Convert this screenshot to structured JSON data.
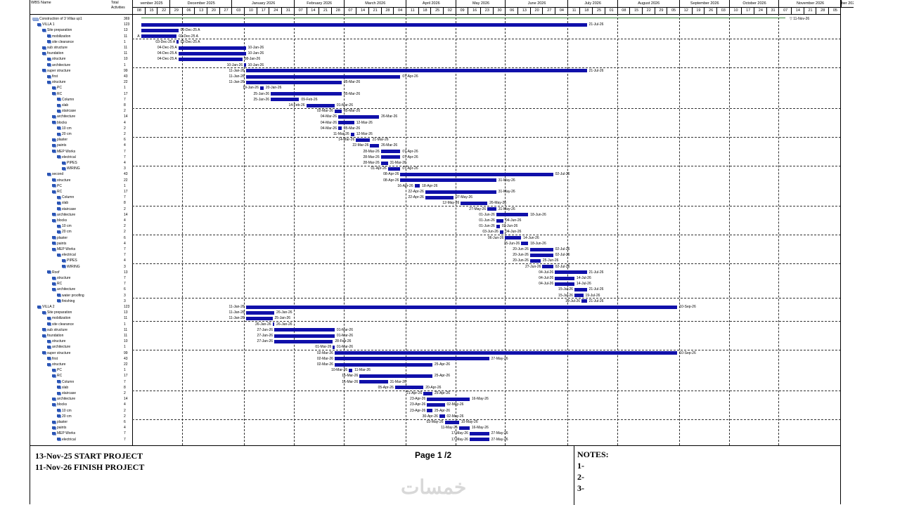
{
  "header": {
    "wbs_name": "WBS Name",
    "total_activities": "Total Activities",
    "months": [
      {
        "label": "vember 2025",
        "w": 3
      },
      {
        "label": "December 2025",
        "w": 5
      },
      {
        "label": "January 2026",
        "w": 5
      },
      {
        "label": "February 2026",
        "w": 4
      },
      {
        "label": "March 2026",
        "w": 5
      },
      {
        "label": "April 2026",
        "w": 4
      },
      {
        "label": "May 2026",
        "w": 4
      },
      {
        "label": "June 2026",
        "w": 5
      },
      {
        "label": "July 2026",
        "w": 4
      },
      {
        "label": "August 2026",
        "w": 5
      },
      {
        "label": "September 2026",
        "w": 4
      },
      {
        "label": "October 2026",
        "w": 4
      },
      {
        "label": "November 2026",
        "w": 5
      },
      {
        "label": "ber 2026",
        "w": 1
      }
    ],
    "weeks": [
      "08",
      "15",
      "22",
      "29",
      "06",
      "13",
      "20",
      "27",
      "03",
      "10",
      "17",
      "24",
      "31",
      "07",
      "14",
      "21",
      "28",
      "07",
      "14",
      "21",
      "28",
      "04",
      "11",
      "18",
      "25",
      "02",
      "09",
      "16",
      "23",
      "30",
      "06",
      "13",
      "20",
      "27",
      "04",
      "11",
      "18",
      "25",
      "01",
      "08",
      "15",
      "22",
      "29",
      "05",
      "12",
      "19",
      "26",
      "03",
      "10",
      "17",
      "24",
      "31",
      "07",
      "14",
      "21",
      "28",
      "05"
    ]
  },
  "tasks": [
    {
      "name": "Construction of 3 Villas up1",
      "d": "369",
      "lvl": 0
    },
    {
      "name": "VILLA 1",
      "d": "123",
      "lvl": 1
    },
    {
      "name": "Site preparation",
      "d": "13",
      "lvl": 2
    },
    {
      "name": "mobilization",
      "d": "11",
      "lvl": 3
    },
    {
      "name": "site clearance",
      "d": "1",
      "lvl": 3
    },
    {
      "name": "sub structure",
      "d": "11",
      "lvl": 2
    },
    {
      "name": "foundation",
      "d": "11",
      "lvl": 2
    },
    {
      "name": "structure",
      "d": "10",
      "lvl": 3
    },
    {
      "name": "architecture",
      "d": "1",
      "lvl": 3
    },
    {
      "name": "super structure",
      "d": "99",
      "lvl": 2
    },
    {
      "name": "first",
      "d": "43",
      "lvl": 3
    },
    {
      "name": "structure",
      "d": "22",
      "lvl": 3
    },
    {
      "name": "PC",
      "d": "1",
      "lvl": 4
    },
    {
      "name": "RC",
      "d": "17",
      "lvl": 4
    },
    {
      "name": "Column",
      "d": "7",
      "lvl": 5
    },
    {
      "name": "slab",
      "d": "8",
      "lvl": 5
    },
    {
      "name": "staircase",
      "d": "2",
      "lvl": 5
    },
    {
      "name": "architecture",
      "d": "14",
      "lvl": 4
    },
    {
      "name": "blocks",
      "d": "4",
      "lvl": 4
    },
    {
      "name": "10 cm",
      "d": "2",
      "lvl": 5
    },
    {
      "name": "20 cm",
      "d": "2",
      "lvl": 5
    },
    {
      "name": "plaster",
      "d": "6",
      "lvl": 4
    },
    {
      "name": "paints",
      "d": "4",
      "lvl": 4
    },
    {
      "name": "MEP Works",
      "d": "7",
      "lvl": 4
    },
    {
      "name": "electrical",
      "d": "7",
      "lvl": 5
    },
    {
      "name": "PIPES",
      "d": "4",
      "lvl": 6
    },
    {
      "name": "WIRING",
      "d": "3",
      "lvl": 6
    },
    {
      "name": "second",
      "d": "43",
      "lvl": 3
    },
    {
      "name": "structure",
      "d": "22",
      "lvl": 4
    },
    {
      "name": "PC",
      "d": "1",
      "lvl": 4
    },
    {
      "name": "RC",
      "d": "17",
      "lvl": 4
    },
    {
      "name": "Column",
      "d": "7",
      "lvl": 5
    },
    {
      "name": "slab",
      "d": "8",
      "lvl": 5
    },
    {
      "name": "staircase",
      "d": "2",
      "lvl": 5
    },
    {
      "name": "architecture",
      "d": "14",
      "lvl": 4
    },
    {
      "name": "blocks",
      "d": "4",
      "lvl": 4
    },
    {
      "name": "10 cm",
      "d": "2",
      "lvl": 5
    },
    {
      "name": "20 cm",
      "d": "2",
      "lvl": 5
    },
    {
      "name": "plaster",
      "d": "6",
      "lvl": 4
    },
    {
      "name": "paints",
      "d": "4",
      "lvl": 4
    },
    {
      "name": "MEP Works",
      "d": "7",
      "lvl": 4
    },
    {
      "name": "electrical",
      "d": "7",
      "lvl": 5
    },
    {
      "name": "PIPES",
      "d": "4",
      "lvl": 6
    },
    {
      "name": "WIRING",
      "d": "3",
      "lvl": 6
    },
    {
      "name": "Roof",
      "d": "13",
      "lvl": 3
    },
    {
      "name": "structure",
      "d": "7",
      "lvl": 4
    },
    {
      "name": "RC",
      "d": "7",
      "lvl": 4
    },
    {
      "name": "architecture",
      "d": "6",
      "lvl": 4
    },
    {
      "name": "water proofing",
      "d": "3",
      "lvl": 5
    },
    {
      "name": "finishing",
      "d": "3",
      "lvl": 5
    },
    {
      "name": "VILLA 2",
      "d": "123",
      "lvl": 1
    },
    {
      "name": "Site preparation",
      "d": "13",
      "lvl": 2
    },
    {
      "name": "mobilization",
      "d": "11",
      "lvl": 3
    },
    {
      "name": "site clearance",
      "d": "1",
      "lvl": 3
    },
    {
      "name": "sub structure",
      "d": "11",
      "lvl": 2
    },
    {
      "name": "foundation",
      "d": "11",
      "lvl": 2
    },
    {
      "name": "structure",
      "d": "10",
      "lvl": 3
    },
    {
      "name": "architecture",
      "d": "1",
      "lvl": 3
    },
    {
      "name": "super structure",
      "d": "99",
      "lvl": 2
    },
    {
      "name": "first",
      "d": "43",
      "lvl": 3
    },
    {
      "name": "structure",
      "d": "22",
      "lvl": 3
    },
    {
      "name": "PC",
      "d": "1",
      "lvl": 4
    },
    {
      "name": "RC",
      "d": "17",
      "lvl": 4
    },
    {
      "name": "Column",
      "d": "7",
      "lvl": 5
    },
    {
      "name": "slab",
      "d": "8",
      "lvl": 5
    },
    {
      "name": "staircase",
      "d": "2",
      "lvl": 5
    },
    {
      "name": "architecture",
      "d": "14",
      "lvl": 4
    },
    {
      "name": "blocks",
      "d": "4",
      "lvl": 4
    },
    {
      "name": "10 cm",
      "d": "2",
      "lvl": 5
    },
    {
      "name": "20 cm",
      "d": "2",
      "lvl": 5
    },
    {
      "name": "plaster",
      "d": "6",
      "lvl": 4
    },
    {
      "name": "paints",
      "d": "4",
      "lvl": 4
    },
    {
      "name": "MEP Works",
      "d": "7",
      "lvl": 4
    },
    {
      "name": "electrical",
      "d": "7",
      "lvl": 5
    }
  ],
  "bars": [
    {
      "r": 0,
      "s": "",
      "e": "11-Nov-26",
      "sd": "2025-11-13",
      "ed": "2026-11-11",
      "thin": true
    },
    {
      "r": 1,
      "s": "",
      "e": "21-Jul-26",
      "sd": "2025-11-13",
      "ed": "2026-07-21"
    },
    {
      "r": 2,
      "s": "",
      "e": "03-Dec-25 A",
      "sd": "2025-11-13",
      "ed": "2025-12-03"
    },
    {
      "r": 3,
      "s": "A",
      "e": "02-Dec-25 A",
      "sd": "2025-11-13",
      "ed": "2025-12-02"
    },
    {
      "r": 4,
      "s": "03-Dec-25 A",
      "e": "03-Dec-25 A",
      "sd": "2025-12-03",
      "ed": "2025-12-03"
    },
    {
      "r": 5,
      "s": "04-Dec-25 A",
      "e": "10-Jan-26",
      "sd": "2025-12-04",
      "ed": "2026-01-10"
    },
    {
      "r": 6,
      "s": "04-Dec-25 A",
      "e": "10-Jan-26",
      "sd": "2025-12-04",
      "ed": "2026-01-10"
    },
    {
      "r": 7,
      "s": "04-Dec-25 A",
      "e": "08-Jan-26",
      "sd": "2025-12-04",
      "ed": "2026-01-08"
    },
    {
      "r": 8,
      "s": "10-Jan-26",
      "e": "10-Jan-26",
      "sd": "2026-01-10",
      "ed": "2026-01-10"
    },
    {
      "r": 9,
      "s": "11-Jan-26",
      "e": "21-Jul-26",
      "sd": "2026-01-11",
      "ed": "2026-07-21"
    },
    {
      "r": 10,
      "s": "11-Jan-26",
      "e": "07-Apr-26",
      "sd": "2026-01-11",
      "ed": "2026-04-07"
    },
    {
      "r": 11,
      "s": "11-Jan-26",
      "e": "05-Mar-26",
      "sd": "2026-01-11",
      "ed": "2026-03-05"
    },
    {
      "r": 12,
      "s": "19-Jan-26",
      "e": "20-Jan-26",
      "sd": "2026-01-19",
      "ed": "2026-01-20"
    },
    {
      "r": 13,
      "s": "25-Jan-26",
      "e": "05-Mar-26",
      "sd": "2026-01-25",
      "ed": "2026-03-05"
    },
    {
      "r": 14,
      "s": "25-Jan-26",
      "e": "09-Feb-26",
      "sd": "2026-01-25",
      "ed": "2026-02-09"
    },
    {
      "r": 15,
      "s": "14-Feb-26",
      "e": "01-Mar-26",
      "sd": "2026-02-14",
      "ed": "2026-03-01"
    },
    {
      "r": 16,
      "s": "02-Mar-26",
      "e": "05-Mar-26",
      "sd": "2026-03-02",
      "ed": "2026-03-05"
    },
    {
      "r": 17,
      "s": "04-Mar-26",
      "e": "26-Mar-26",
      "sd": "2026-03-04",
      "ed": "2026-03-26"
    },
    {
      "r": 18,
      "s": "04-Mar-26",
      "e": "12-Mar-26",
      "sd": "2026-03-04",
      "ed": "2026-03-12"
    },
    {
      "r": 19,
      "s": "04-Mar-26",
      "e": "05-Mar-26",
      "sd": "2026-03-04",
      "ed": "2026-03-05"
    },
    {
      "r": 20,
      "s": "11-Mar-26",
      "e": "12-Mar-26",
      "sd": "2026-03-11",
      "ed": "2026-03-12"
    },
    {
      "r": 21,
      "s": "14-Mar-26",
      "e": "21-Mar-26",
      "sd": "2026-03-14",
      "ed": "2026-03-21"
    },
    {
      "r": 22,
      "s": "22-Mar-26",
      "e": "26-Mar-26",
      "sd": "2026-03-22",
      "ed": "2026-03-26"
    },
    {
      "r": 23,
      "s": "28-Mar-26",
      "e": "07-Apr-26",
      "sd": "2026-03-28",
      "ed": "2026-04-07"
    },
    {
      "r": 24,
      "s": "28-Mar-26",
      "e": "07-Apr-26",
      "sd": "2026-03-28",
      "ed": "2026-04-07"
    },
    {
      "r": 25,
      "s": "28-Mar-26",
      "e": "31-Mar-26",
      "sd": "2026-03-28",
      "ed": "2026-03-31"
    },
    {
      "r": 26,
      "s": "01-Apr-26",
      "e": "07-Apr-26",
      "sd": "2026-04-01",
      "ed": "2026-04-07"
    },
    {
      "r": 27,
      "s": "08-Apr-26",
      "e": "02-Jul-26",
      "sd": "2026-04-08",
      "ed": "2026-07-02"
    },
    {
      "r": 28,
      "s": "08-Apr-26",
      "e": "31-May-26",
      "sd": "2026-04-08",
      "ed": "2026-05-31"
    },
    {
      "r": 29,
      "s": "16-Apr-26",
      "e": "18-Apr-26",
      "sd": "2026-04-16",
      "ed": "2026-04-18"
    },
    {
      "r": 30,
      "s": "22-Apr-26",
      "e": "31-May-26",
      "sd": "2026-04-22",
      "ed": "2026-05-31"
    },
    {
      "r": 31,
      "s": "22-Apr-26",
      "e": "07-May-26",
      "sd": "2026-04-22",
      "ed": "2026-05-07"
    },
    {
      "r": 32,
      "s": "12-May-26",
      "e": "26-May-26",
      "sd": "2026-05-12",
      "ed": "2026-05-26"
    },
    {
      "r": 33,
      "s": "27-May-26",
      "e": "31-May-26",
      "sd": "2026-05-27",
      "ed": "2026-05-31"
    },
    {
      "r": 34,
      "s": "01-Jun-26",
      "e": "18-Jun-26",
      "sd": "2026-06-01",
      "ed": "2026-06-18"
    },
    {
      "r": 35,
      "s": "01-Jun-26",
      "e": "04-Jun-26",
      "sd": "2026-06-01",
      "ed": "2026-06-04"
    },
    {
      "r": 36,
      "s": "01-Jun-26",
      "e": "02-Jun-26",
      "sd": "2026-06-01",
      "ed": "2026-06-02"
    },
    {
      "r": 37,
      "s": "03-Jun-26",
      "e": "04-Jun-26",
      "sd": "2026-06-03",
      "ed": "2026-06-04"
    },
    {
      "r": 38,
      "s": "06-Jun-26",
      "e": "14-Jun-26",
      "sd": "2026-06-06",
      "ed": "2026-06-14"
    },
    {
      "r": 39,
      "s": "15-Jun-26",
      "e": "18-Jun-26",
      "sd": "2026-06-15",
      "ed": "2026-06-18"
    },
    {
      "r": 40,
      "s": "20-Jun-26",
      "e": "02-Jul-26",
      "sd": "2026-06-20",
      "ed": "2026-07-02"
    },
    {
      "r": 41,
      "s": "20-Jun-26",
      "e": "02-Jul-26",
      "sd": "2026-06-20",
      "ed": "2026-07-02"
    },
    {
      "r": 42,
      "s": "20-Jun-26",
      "e": "25-Jun-26",
      "sd": "2026-06-20",
      "ed": "2026-06-25"
    },
    {
      "r": 43,
      "s": "27-Jun-26",
      "e": "02-Jul-26",
      "sd": "2026-06-27",
      "ed": "2026-07-02"
    },
    {
      "r": 44,
      "s": "04-Jul-26",
      "e": "21-Jul-26",
      "sd": "2026-07-04",
      "ed": "2026-07-21"
    },
    {
      "r": 45,
      "s": "04-Jul-26",
      "e": "14-Jul-26",
      "sd": "2026-07-04",
      "ed": "2026-07-14"
    },
    {
      "r": 46,
      "s": "04-Jul-26",
      "e": "14-Jul-26",
      "sd": "2026-07-04",
      "ed": "2026-07-14"
    },
    {
      "r": 47,
      "s": "15-Jul-26",
      "e": "21-Jul-26",
      "sd": "2026-07-15",
      "ed": "2026-07-21"
    },
    {
      "r": 48,
      "s": "15-Jul-26",
      "e": "19-Jul-26",
      "sd": "2026-07-15",
      "ed": "2026-07-19"
    },
    {
      "r": 49,
      "s": "19-Jul-26",
      "e": "21-Jul-26",
      "sd": "2026-07-19",
      "ed": "2026-07-21"
    },
    {
      "r": 50,
      "s": "11-Jan-26",
      "e": "10-Sep-26",
      "sd": "2026-01-11",
      "ed": "2026-09-10"
    },
    {
      "r": 51,
      "s": "11-Jan-26",
      "e": "26-Jan-26",
      "sd": "2026-01-11",
      "ed": "2026-01-26"
    },
    {
      "r": 52,
      "s": "11-Jan-26",
      "e": "25-Jan-26",
      "sd": "2026-01-11",
      "ed": "2026-01-25"
    },
    {
      "r": 53,
      "s": "26-Jan-26",
      "e": "26-Jan-26",
      "sd": "2026-01-26",
      "ed": "2026-01-26"
    },
    {
      "r": 54,
      "s": "27-Jan-26",
      "e": "01-Mar-26",
      "sd": "2026-01-27",
      "ed": "2026-03-01"
    },
    {
      "r": 55,
      "s": "27-Jan-26",
      "e": "01-Mar-26",
      "sd": "2026-01-27",
      "ed": "2026-03-01"
    },
    {
      "r": 56,
      "s": "27-Jan-26",
      "e": "28-Feb-26",
      "sd": "2026-01-27",
      "ed": "2026-02-28"
    },
    {
      "r": 57,
      "s": "01-Mar-26",
      "e": "01-Mar-26",
      "sd": "2026-03-01",
      "ed": "2026-03-01"
    },
    {
      "r": 58,
      "s": "02-Mar-26",
      "e": "10-Sep-26",
      "sd": "2026-03-02",
      "ed": "2026-09-10"
    },
    {
      "r": 59,
      "s": "02-Mar-26",
      "e": "27-May-26",
      "sd": "2026-03-02",
      "ed": "2026-05-27"
    },
    {
      "r": 60,
      "s": "02-Mar-26",
      "e": "25-Apr-26",
      "sd": "2026-03-02",
      "ed": "2026-04-25"
    },
    {
      "r": 61,
      "s": "10-Mar-26",
      "e": "11-Mar-26",
      "sd": "2026-03-10",
      "ed": "2026-03-11"
    },
    {
      "r": 62,
      "s": "16-Mar-26",
      "e": "25-Apr-26",
      "sd": "2026-03-16",
      "ed": "2026-04-25"
    },
    {
      "r": 63,
      "s": "16-Mar-26",
      "e": "31-Mar-26",
      "sd": "2026-03-16",
      "ed": "2026-03-31"
    },
    {
      "r": 64,
      "s": "05-Apr-26",
      "e": "20-Apr-26",
      "sd": "2026-04-05",
      "ed": "2026-04-20"
    },
    {
      "r": 65,
      "s": "21-Apr-26",
      "e": "25-Apr-26",
      "sd": "2026-04-21",
      "ed": "2026-04-25"
    },
    {
      "r": 66,
      "s": "23-Apr-26",
      "e": "16-May-26",
      "sd": "2026-04-23",
      "ed": "2026-05-16"
    },
    {
      "r": 67,
      "s": "23-Apr-26",
      "e": "02-May-26",
      "sd": "2026-04-23",
      "ed": "2026-05-02"
    },
    {
      "r": 68,
      "s": "23-Apr-26",
      "e": "25-Apr-26",
      "sd": "2026-04-23",
      "ed": "2026-04-25"
    },
    {
      "r": 69,
      "s": "30-Apr-26",
      "e": "02-May-26",
      "sd": "2026-04-30",
      "ed": "2026-05-02"
    },
    {
      "r": 70,
      "s": "03-May-26",
      "e": "10-May-26",
      "sd": "2026-05-03",
      "ed": "2026-05-10"
    },
    {
      "r": 71,
      "s": "11-May-26",
      "e": "16-May-26",
      "sd": "2026-05-11",
      "ed": "2026-05-16"
    },
    {
      "r": 72,
      "s": "17-May-26",
      "e": "27-May-26",
      "sd": "2026-05-17",
      "ed": "2026-05-27"
    },
    {
      "r": 73,
      "s": "17-May-26",
      "e": "27-May-26",
      "sd": "2026-05-17",
      "ed": "2026-05-27"
    }
  ],
  "gridWeeks": [
    4,
    9,
    13,
    17,
    22,
    26,
    30,
    35,
    39,
    44,
    48,
    52
  ],
  "hlines": [
    4,
    9,
    16,
    21,
    26,
    33,
    38,
    43,
    49,
    53,
    58,
    65,
    70
  ],
  "footer": {
    "start": "13-Nov-25  START PROJECT",
    "finish": "11-Nov-26  FINISH PROJECT",
    "page": "Page 1 /2",
    "notes_title": "NOTES:",
    "notes": [
      "1-",
      "2-",
      "3-"
    ],
    "watermark": "خمسات"
  },
  "colors": {
    "bar": "#1010aa",
    "summary_line": "#3a8a3a"
  }
}
